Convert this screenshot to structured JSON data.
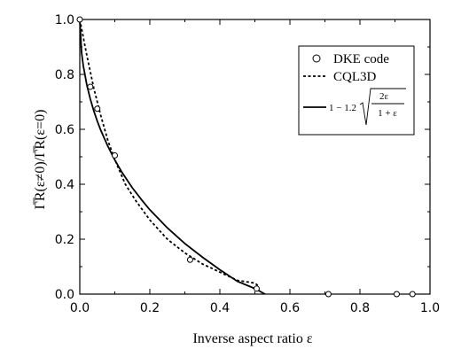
{
  "chart_data": {
    "type": "line",
    "title": "",
    "xlabel": "Inverse aspect ratio ε",
    "ylabel": "Γ̅R(ε≠0)/Γ̅R(ε=0)",
    "xlim": [
      0.0,
      1.0
    ],
    "ylim": [
      0.0,
      1.0
    ],
    "xticks": [
      0.0,
      0.2,
      0.4,
      0.6,
      0.8,
      1.0
    ],
    "yticks": [
      0.0,
      0.2,
      0.4,
      0.6,
      0.8,
      1.0
    ],
    "xtick_labels": [
      "0.0",
      "0.2",
      "0.4",
      "0.6",
      "0.8",
      "1.0"
    ],
    "ytick_labels": [
      "0.0",
      "0.2",
      "0.4",
      "0.6",
      "0.8",
      "1.0"
    ],
    "grid": false,
    "legend_position": "top-right",
    "series": [
      {
        "name": "DKE code",
        "style": "markers",
        "marker": "open-circle",
        "x": [
          0.0,
          0.03,
          0.05,
          0.1,
          0.315,
          0.505,
          0.71,
          0.905,
          0.95
        ],
        "y": [
          1.0,
          0.755,
          0.675,
          0.505,
          0.125,
          0.02,
          0.0,
          0.0,
          0.0
        ]
      },
      {
        "name": "CQL3D",
        "style": "dashed",
        "x": [
          0.0,
          0.02,
          0.04,
          0.06,
          0.08,
          0.1,
          0.13,
          0.16,
          0.2,
          0.25,
          0.3,
          0.35,
          0.4,
          0.45,
          0.5,
          0.51
        ],
        "y": [
          1.0,
          0.87,
          0.75,
          0.65,
          0.56,
          0.49,
          0.4,
          0.34,
          0.27,
          0.2,
          0.15,
          0.11,
          0.08,
          0.05,
          0.04,
          0.03
        ]
      },
      {
        "name": "1 − 1.2√(2ε/(1+ε))",
        "style": "solid",
        "x": [
          0.0,
          0.005,
          0.01,
          0.02,
          0.03,
          0.04,
          0.05,
          0.06,
          0.08,
          0.1,
          0.12,
          0.15,
          0.18,
          0.2,
          0.25,
          0.3,
          0.35,
          0.4,
          0.45,
          0.5,
          0.529
        ],
        "y": [
          1.0,
          0.8806,
          0.8315,
          0.7624,
          0.7103,
          0.6672,
          0.6297,
          0.5964,
          0.5387,
          0.4883,
          0.4443,
          0.3871,
          0.3378,
          0.3072,
          0.2412,
          0.1842,
          0.1347,
          0.0888,
          0.0464,
          0.0202,
          0.0
        ]
      }
    ],
    "legend_formula": {
      "prefix": "1 − 1.2",
      "numerator": "2ε",
      "denominator": "1 + ε"
    }
  }
}
